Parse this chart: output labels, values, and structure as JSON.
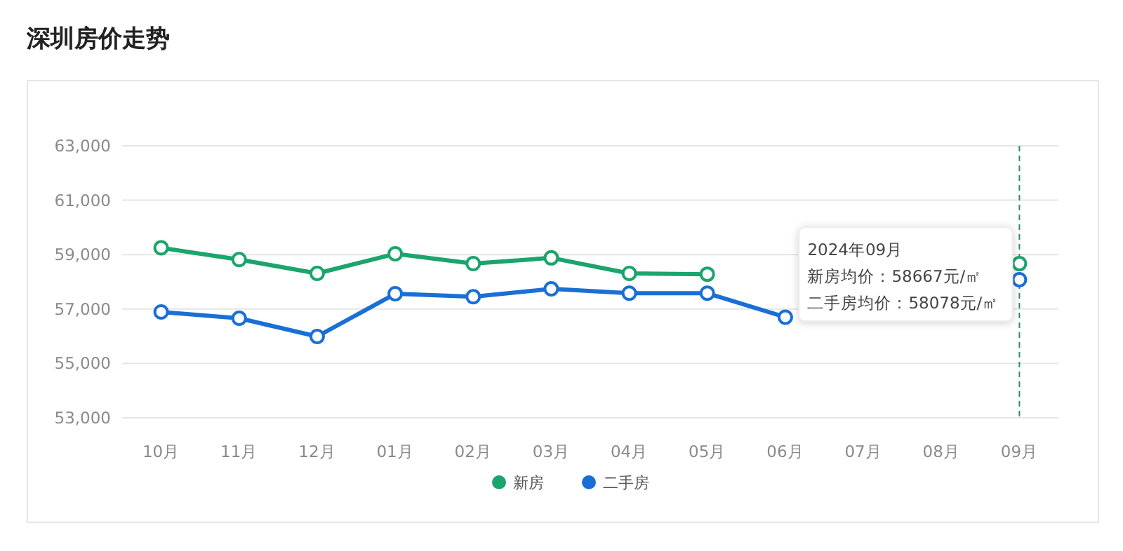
{
  "chart_data": {
    "type": "line",
    "title": "深圳房价走势",
    "categories": [
      "10月",
      "11月",
      "12月",
      "01月",
      "02月",
      "03月",
      "04月",
      "05月",
      "06月",
      "07月",
      "08月",
      "09月"
    ],
    "series": [
      {
        "name": "新房",
        "color": "#1aa56c",
        "values": [
          59250,
          58820,
          58310,
          59030,
          58670,
          58880,
          58310,
          58280,
          null,
          null,
          null,
          58667
        ]
      },
      {
        "name": "二手房",
        "color": "#1a6fd6",
        "values": [
          56890,
          56660,
          55990,
          57560,
          57450,
          57740,
          57580,
          57580,
          56700,
          null,
          null,
          58078
        ]
      }
    ],
    "ylim": [
      53000,
      63000
    ],
    "yticks": [
      {
        "value": 53000,
        "label": "53,000"
      },
      {
        "value": 55000,
        "label": "55,000"
      },
      {
        "value": 57000,
        "label": "57,000"
      },
      {
        "value": 59000,
        "label": "59,000"
      },
      {
        "value": 61000,
        "label": "61,000"
      },
      {
        "value": 63000,
        "label": "63,000"
      }
    ],
    "grid": "y",
    "legend": "bottom",
    "marker": "circle",
    "line_style": "solid",
    "ref_lines": [
      {
        "axis": "x",
        "value": "09月",
        "color": "#2e8b6e",
        "line_style": "dashed"
      }
    ],
    "annotations": [
      "2024年09月",
      "新房均价：58667元/㎡",
      "二手房均价：58078元/㎡"
    ]
  }
}
